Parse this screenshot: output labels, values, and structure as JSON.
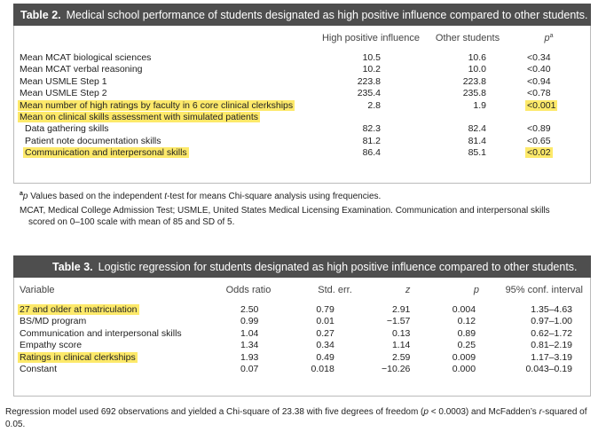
{
  "table2": {
    "number": "Table 2.",
    "caption": "Medical school performance of students designated as high positive influence compared to other students.",
    "columns": {
      "c1": "High positive influence",
      "c2": "Other students",
      "c3_base": "p",
      "c3_sup": "a"
    },
    "rows": [
      {
        "label": "Mean MCAT biological sciences",
        "v1": "10.5",
        "v2": "10.6",
        "p": "<0.34",
        "highlight": false,
        "pHighlight": false
      },
      {
        "label": "Mean MCAT verbal reasoning",
        "v1": "10.2",
        "v2": "10.0",
        "p": "<0.40",
        "highlight": false,
        "pHighlight": false
      },
      {
        "label": "Mean USMLE Step 1",
        "v1": "223.8",
        "v2": "223.8",
        "p": "<0.94",
        "highlight": false,
        "pHighlight": false
      },
      {
        "label": "Mean USMLE Step 2",
        "v1": "235.4",
        "v2": "235.8",
        "p": "<0.78",
        "highlight": false,
        "pHighlight": false
      },
      {
        "label": "Mean number of high ratings by faculty in 6 core clinical clerkships",
        "v1": "2.8",
        "v2": "1.9",
        "p": "<0.001",
        "highlight": true,
        "pHighlight": true
      },
      {
        "label": "Mean on clinical skills assessment with simulated patients",
        "v1": "",
        "v2": "",
        "p": "",
        "highlight": true,
        "pHighlight": false
      },
      {
        "label": "Data gathering skills",
        "v1": "82.3",
        "v2": "82.4",
        "p": "<0.89",
        "highlight": false,
        "pHighlight": false,
        "indent": true
      },
      {
        "label": "Patient note documentation skills",
        "v1": "81.2",
        "v2": "81.4",
        "p": "<0.65",
        "highlight": false,
        "pHighlight": false,
        "indent": true
      },
      {
        "label": "Communication and interpersonal skills",
        "v1": "86.4",
        "v2": "85.1",
        "p": "<0.02",
        "highlight": true,
        "pHighlight": true,
        "indent": true
      }
    ],
    "footnote_sup": "a",
    "footnote_p": "p",
    "footnote_a_mid": " Values based on the independent ",
    "footnote_t": "t",
    "footnote_a_end": "-test for means Chi-square analysis using frequencies.",
    "footnote_b": "MCAT, Medical College Admission Test; USMLE, United States Medical Licensing Examination. Communication and interpersonal skills",
    "footnote_c": "scored on 0–100 scale with mean of 85 and SD of 5."
  },
  "table3": {
    "number": "Table 3.",
    "caption": "Logistic regression for students designated as high positive influence compared to other students.",
    "columns": {
      "variable": "Variable",
      "odds": "Odds ratio",
      "stderr": "Std. err.",
      "z": "z",
      "p": "p",
      "ci": "95% conf. interval"
    },
    "rows": [
      {
        "label": "27 and older at matriculation",
        "odds": "2.50",
        "se": "0.79",
        "z": "2.91",
        "p": "0.004",
        "ci": "1.35–4.63",
        "highlight": true
      },
      {
        "label": "BS/MD program",
        "odds": "0.99",
        "se": "0.01",
        "z": "−1.57",
        "p": "0.12",
        "ci": "0.97–1.00",
        "highlight": false
      },
      {
        "label": "Communication and interpersonal skills",
        "odds": "1.04",
        "se": "0.27",
        "z": "0.13",
        "p": "0.89",
        "ci": "0.62–1.72",
        "highlight": false
      },
      {
        "label": "Empathy score",
        "odds": "1.34",
        "se": "0.34",
        "z": "1.14",
        "p": "0.25",
        "ci": "0.81–2.19",
        "highlight": false
      },
      {
        "label": "Ratings in clinical clerkships",
        "odds": "1.93",
        "se": "0.49",
        "z": "2.59",
        "p": "0.009",
        "ci": "1.17–3.19",
        "highlight": true
      },
      {
        "label": "Constant",
        "odds": "0.07",
        "se": "0.018",
        "z": "−10.26",
        "p": "0.000",
        "ci": "0.043–0.19",
        "highlight": false
      }
    ],
    "note_a": "Regression model used 692 observations and yielded a Chi-square of 23.38 with five degrees of freedom (",
    "note_p": "p",
    "note_b": " < 0.0003) and McFadden’s ",
    "note_r": "r",
    "note_c": "-squared of",
    "note_d": "0.05."
  }
}
